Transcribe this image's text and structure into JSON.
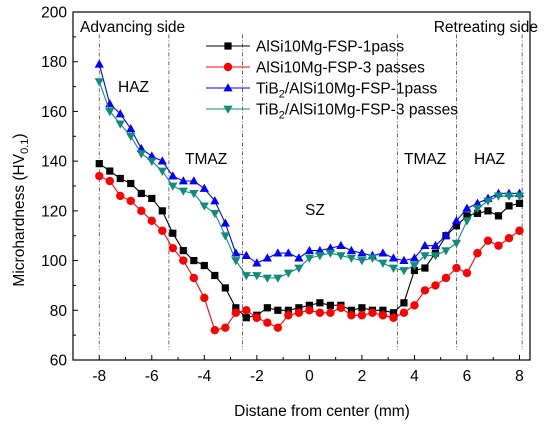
{
  "chart_data": {
    "type": "line",
    "title": "",
    "xlabel": "Distane from center (mm)",
    "ylabel": {
      "main": "Microhardness (HV",
      "sub": "0.1",
      "close": ")"
    },
    "xlim": [
      -9,
      8.4
    ],
    "ylim": [
      60,
      200
    ],
    "xticks": [
      -8,
      -6,
      -4,
      -2,
      0,
      2,
      4,
      6,
      8
    ],
    "yticks": [
      60,
      80,
      100,
      120,
      140,
      160,
      180,
      200
    ],
    "grid": false,
    "legend_position": "top-right",
    "zone_boundaries": [
      -8,
      -5.35,
      -2.55,
      3.35,
      5.6,
      8.1
    ],
    "annotations": {
      "advancing": "Advancing side",
      "retreating": "Retreating side",
      "haz_left": "HAZ",
      "tmaz_left": "TMAZ",
      "sz": "SZ",
      "tmaz_right": "TMAZ",
      "haz_right": "HAZ"
    },
    "series": [
      {
        "name": "AlSi10Mg-FSP-1pass",
        "legend": {
          "prefix": "",
          "sub": "",
          "rest": "AlSi10Mg-FSP-1pass"
        },
        "color": "#000000",
        "marker": "square",
        "x": [
          -8,
          -7.6,
          -7.2,
          -6.8,
          -6.4,
          -6,
          -5.6,
          -5.2,
          -4.8,
          -4.4,
          -4,
          -3.6,
          -3.2,
          -2.8,
          -2.4,
          -2,
          -1.6,
          -1.2,
          -0.8,
          -0.4,
          0,
          0.4,
          0.8,
          1.2,
          1.6,
          2,
          2.4,
          2.8,
          3.2,
          3.6,
          4,
          4.4,
          4.8,
          5.2,
          5.6,
          6,
          6.4,
          6.8,
          7.2,
          7.6,
          8
        ],
        "y": [
          139,
          136,
          133,
          131,
          127,
          125,
          120,
          111,
          104,
          100,
          98,
          94,
          89,
          81,
          77,
          78,
          81,
          80,
          80,
          81,
          82,
          83,
          82,
          82,
          80,
          81,
          80,
          80,
          79,
          83,
          96,
          97,
          103,
          110,
          114,
          118,
          119,
          120,
          118,
          122,
          123
        ]
      },
      {
        "name": "AlSi10Mg-FSP-3 passes",
        "legend": {
          "prefix": "",
          "sub": "",
          "rest": "AlSi10Mg-FSP-3 passes"
        },
        "color": "#ff0000",
        "marker": "circle",
        "x": [
          -8,
          -7.6,
          -7.2,
          -6.8,
          -6.4,
          -6,
          -5.6,
          -5.2,
          -4.8,
          -4.4,
          -4,
          -3.6,
          -3.2,
          -2.8,
          -2.4,
          -2,
          -1.6,
          -1.2,
          -0.8,
          -0.4,
          0,
          0.4,
          0.8,
          1.2,
          1.6,
          2,
          2.4,
          2.8,
          3.2,
          3.6,
          4,
          4.4,
          4.8,
          5.2,
          5.6,
          6,
          6.4,
          6.8,
          7.2,
          7.6,
          8
        ],
        "y": [
          134,
          132,
          126,
          124,
          120,
          116,
          112,
          105,
          100,
          93,
          85,
          72,
          73,
          79,
          80,
          77,
          75,
          73,
          78,
          79,
          80,
          79,
          79,
          81,
          78,
          78,
          79,
          78,
          77,
          79,
          82,
          88,
          90,
          93,
          97,
          95,
          103,
          108,
          106,
          109,
          112
        ]
      },
      {
        "name": "TiB2/AlSi10Mg-FSP-1pass",
        "legend": {
          "prefix": "TiB",
          "sub": "2",
          "rest": "/AlSi10Mg-FSP-1pass"
        },
        "color": "#0000ff",
        "marker": "triangle-up",
        "x": [
          -8,
          -7.6,
          -7.2,
          -6.8,
          -6.4,
          -6,
          -5.6,
          -5.2,
          -4.8,
          -4.4,
          -4,
          -3.6,
          -3.2,
          -2.8,
          -2.4,
          -2,
          -1.6,
          -1.2,
          -0.8,
          -0.4,
          0,
          0.4,
          0.8,
          1.2,
          1.6,
          2,
          2.4,
          2.8,
          3.2,
          3.6,
          4,
          4.4,
          4.8,
          5.2,
          5.6,
          6,
          6.4,
          6.8,
          7.2,
          7.6,
          8
        ],
        "y": [
          179,
          163,
          159,
          153,
          145,
          142,
          140,
          134,
          132,
          132,
          129,
          124,
          115,
          103,
          102,
          99,
          101,
          103,
          103,
          101,
          104,
          104,
          105,
          106,
          104,
          103,
          102,
          103,
          101,
          100,
          101,
          106,
          106,
          110,
          116,
          121,
          123,
          125,
          127,
          127,
          127
        ]
      },
      {
        "name": "TiB2/AlSi10Mg-FSP-3 passes",
        "legend": {
          "prefix": "TiB",
          "sub": "2",
          "rest": "/AlSi10Mg-FSP-3 passes"
        },
        "color": "#108c7c",
        "marker": "triangle-down",
        "x": [
          -8,
          -7.6,
          -7.2,
          -6.8,
          -6.4,
          -6,
          -5.6,
          -5.2,
          -4.8,
          -4.4,
          -4,
          -3.6,
          -3.2,
          -2.8,
          -2.4,
          -2,
          -1.6,
          -1.2,
          -0.8,
          -0.4,
          0,
          0.4,
          0.8,
          1.2,
          1.6,
          2,
          2.4,
          2.8,
          3.2,
          3.6,
          4,
          4.4,
          4.8,
          5.2,
          5.6,
          6,
          6.4,
          6.8,
          7.2,
          7.6,
          8
        ],
        "y": [
          172,
          160,
          155,
          150,
          143,
          140,
          136,
          130,
          128,
          127,
          122,
          119,
          110,
          100,
          94,
          94,
          93,
          93,
          95,
          97,
          101,
          102,
          103,
          102,
          101,
          100,
          101,
          99,
          97,
          96,
          98,
          102,
          102,
          104,
          107,
          116,
          121,
          124,
          126,
          126,
          126
        ]
      }
    ]
  }
}
